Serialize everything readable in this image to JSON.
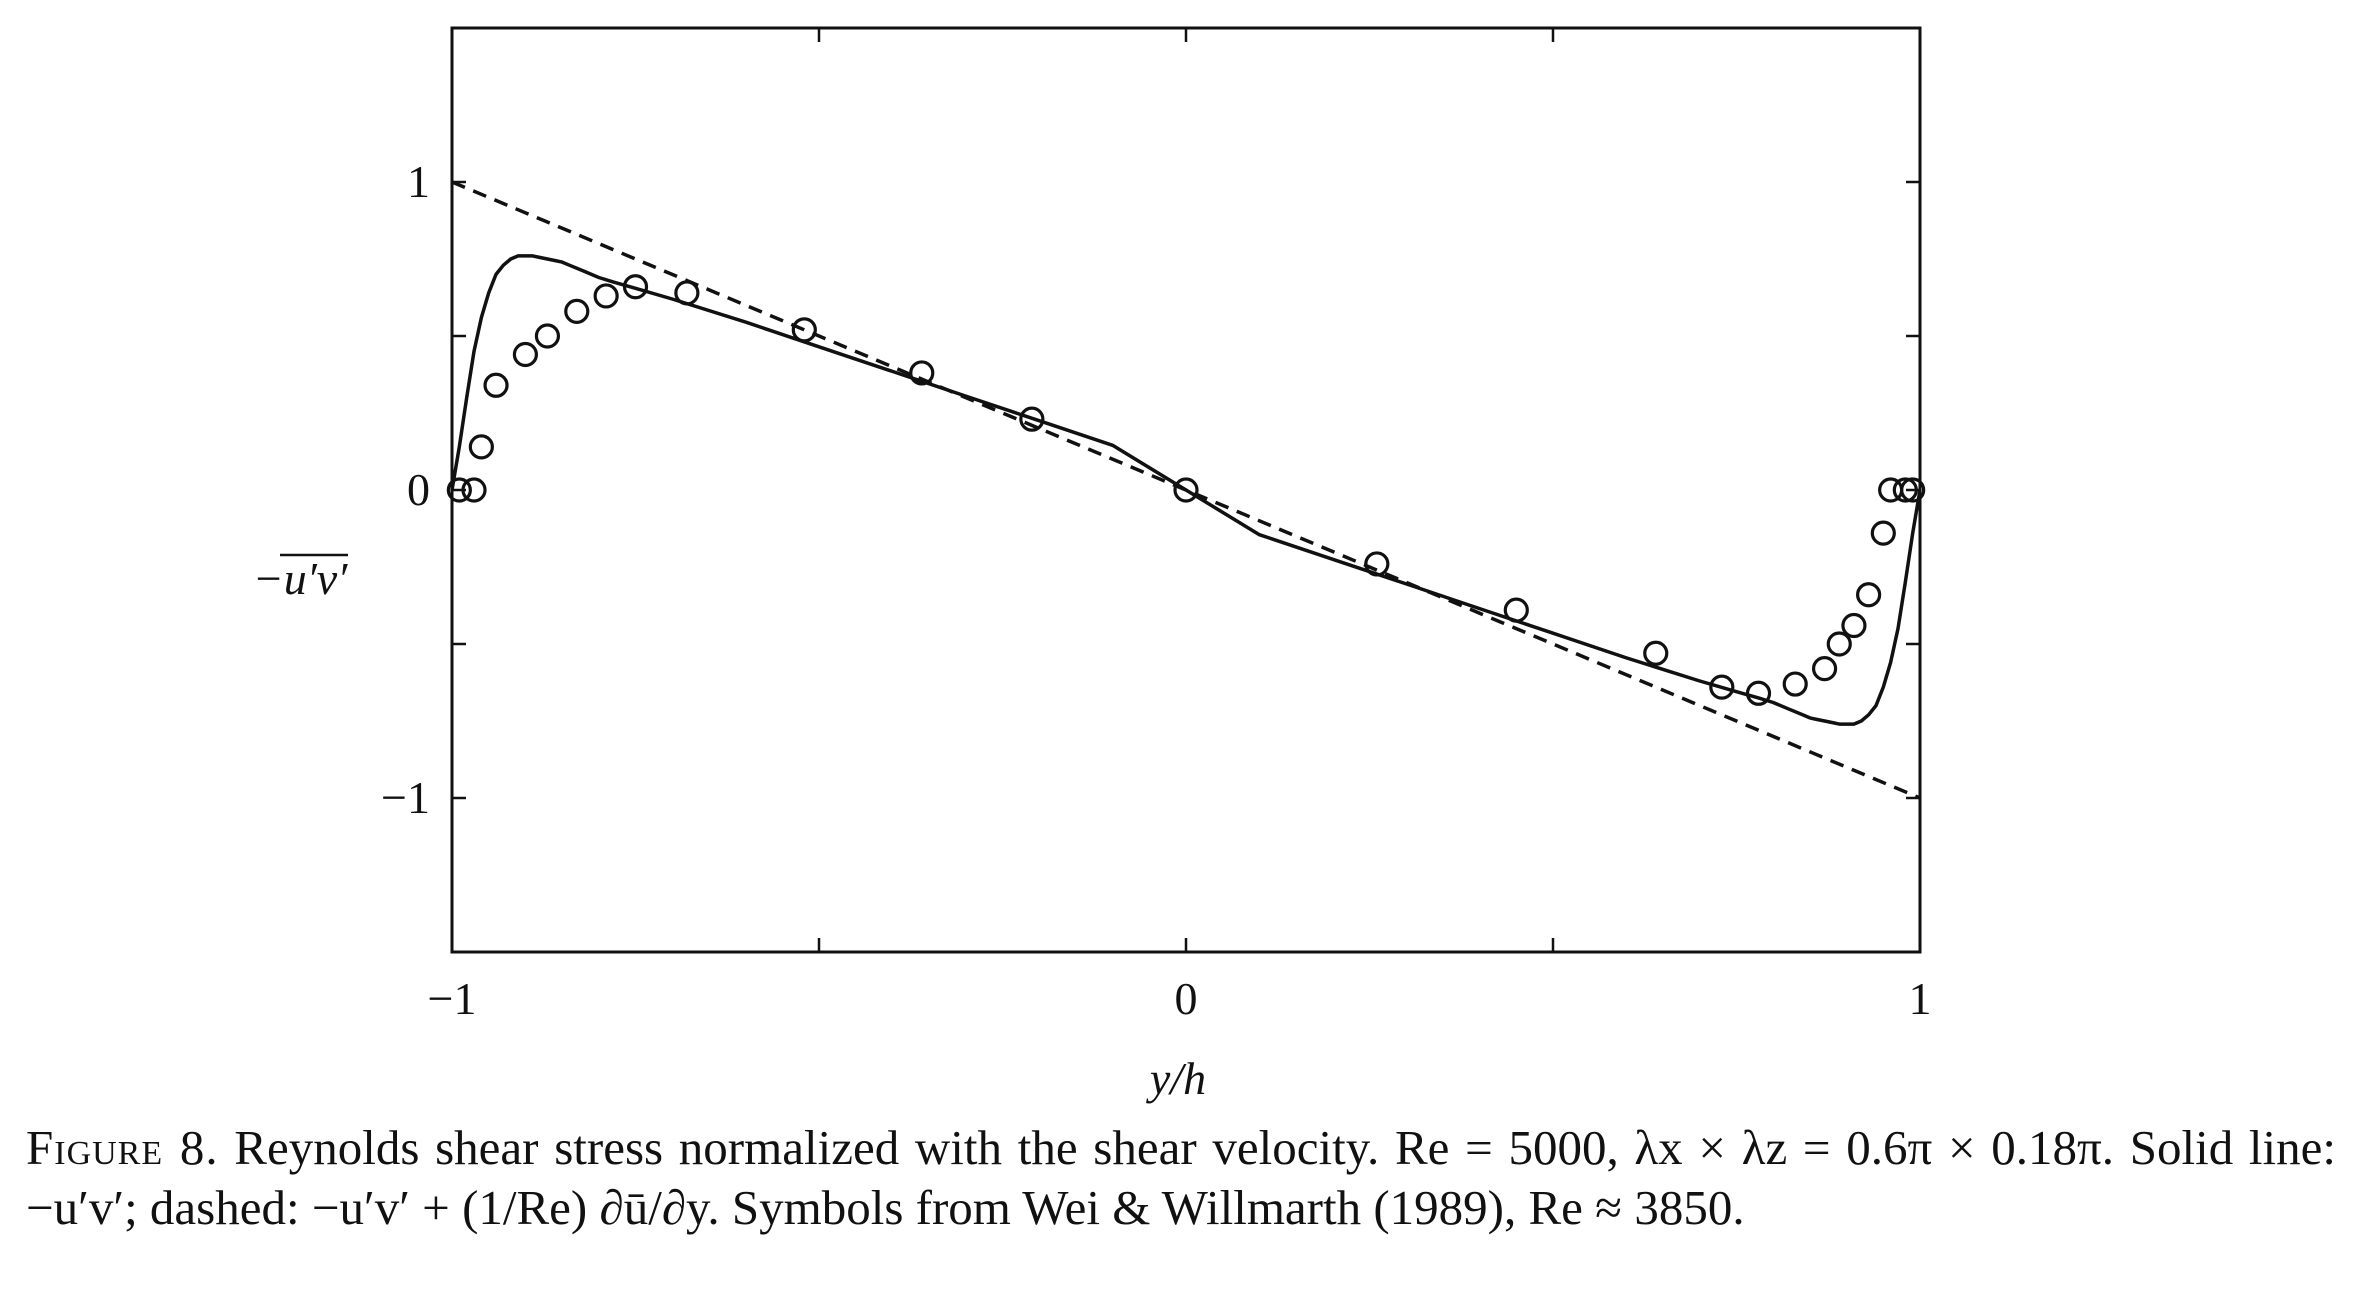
{
  "chart_data": {
    "type": "line",
    "title": "",
    "xlabel": "y/h",
    "ylabel": "−u′v′",
    "xlim": [
      -1,
      1
    ],
    "ylim": [
      -1.5,
      1.5
    ],
    "x_ticks": [
      -1,
      -0.5,
      0,
      0.5,
      1
    ],
    "x_tick_labels": [
      "−1",
      "",
      "0",
      "",
      "1"
    ],
    "y_ticks": [
      -1,
      -0.5,
      0,
      0.5,
      1
    ],
    "y_tick_labels": [
      "−1",
      "",
      "0",
      "",
      "1"
    ],
    "grid": false,
    "legend": "none",
    "series": [
      {
        "style": "solid",
        "color": "#111111",
        "x": [
          -1.0,
          -0.99,
          -0.98,
          -0.97,
          -0.96,
          -0.95,
          -0.94,
          -0.93,
          -0.92,
          -0.91,
          -0.9,
          -0.89,
          -0.88,
          -0.87,
          -0.86,
          -0.85,
          -0.84,
          -0.82,
          -0.8,
          -0.78,
          -0.75,
          -0.7,
          -0.6,
          -0.5,
          -0.4,
          -0.3,
          -0.2,
          -0.1,
          0.0,
          0.1,
          0.2,
          0.3,
          0.4,
          0.5,
          0.6,
          0.7,
          0.75,
          0.78,
          0.8,
          0.82,
          0.84,
          0.85,
          0.86,
          0.87,
          0.88,
          0.89,
          0.9,
          0.91,
          0.92,
          0.93,
          0.94,
          0.95,
          0.96,
          0.97,
          0.98,
          0.99,
          1.0
        ],
        "y": [
          0.0,
          0.14,
          0.3,
          0.45,
          0.56,
          0.64,
          0.7,
          0.73,
          0.75,
          0.76,
          0.76,
          0.76,
          0.755,
          0.75,
          0.745,
          0.74,
          0.73,
          0.71,
          0.69,
          0.675,
          0.655,
          0.62,
          0.545,
          0.465,
          0.385,
          0.305,
          0.225,
          0.145,
          0.0,
          -0.145,
          -0.225,
          -0.305,
          -0.385,
          -0.465,
          -0.545,
          -0.62,
          -0.655,
          -0.675,
          -0.69,
          -0.71,
          -0.73,
          -0.74,
          -0.745,
          -0.75,
          -0.755,
          -0.76,
          -0.76,
          -0.76,
          -0.75,
          -0.73,
          -0.7,
          -0.64,
          -0.56,
          -0.45,
          -0.3,
          -0.14,
          0.0
        ]
      },
      {
        "style": "dashed",
        "color": "#111111",
        "x": [
          -1,
          1
        ],
        "y": [
          1,
          -1
        ]
      },
      {
        "style": "markers",
        "marker": "open-circle",
        "color": "#111111",
        "x": [
          -0.99,
          -0.97,
          -0.96,
          -0.94,
          -0.9,
          -0.87,
          -0.83,
          -0.79,
          -0.75,
          -0.68,
          -0.52,
          -0.36,
          -0.21,
          0.0,
          0.26,
          0.45,
          0.64,
          0.73,
          0.78,
          0.83,
          0.87,
          0.89,
          0.91,
          0.93,
          0.95,
          0.96,
          0.98,
          0.99
        ],
        "y": [
          0.0,
          0.0,
          0.14,
          0.34,
          0.44,
          0.5,
          0.58,
          0.63,
          0.66,
          0.64,
          0.52,
          0.38,
          0.23,
          0.0,
          -0.24,
          -0.39,
          -0.53,
          -0.64,
          -0.66,
          -0.63,
          -0.58,
          -0.5,
          -0.44,
          -0.34,
          -0.14,
          0.0,
          0.0,
          0.0
        ]
      }
    ]
  },
  "caption": {
    "label": "Figure 8.",
    "text": " Reynolds shear stress normalized with the shear velocity. Re = 5000, λx × λz = 0.6π × 0.18π. Solid line: −u′v′; dashed: −u′v′ + (1/Re) ∂ū/∂y. Symbols from Wei & Willmarth (1989), Re ≈ 3850."
  }
}
